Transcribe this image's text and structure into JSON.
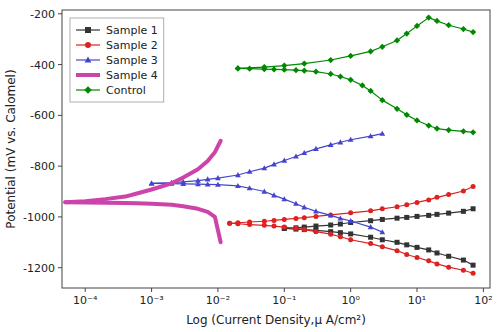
{
  "chart_data": {
    "type": "line",
    "xlabel": "Log (Current Density,μ A/cm²)",
    "ylabel": "Potential (mV vs. Calomel)",
    "log": "x",
    "grid": false,
    "legend": "upper left",
    "xlim": [
      4.466835921509635e-05,
      125.89254117941672
    ],
    "xticks": [
      {
        "value": 0.0001,
        "label": "10⁻⁴"
      },
      {
        "value": 0.001,
        "label": "10⁻³"
      },
      {
        "value": 0.01,
        "label": "10⁻²"
      },
      {
        "value": 0.1,
        "label": "10⁻¹"
      },
      {
        "value": 1,
        "label": "10⁰"
      },
      {
        "value": 10,
        "label": "10¹"
      },
      {
        "value": 100,
        "label": "10²"
      }
    ],
    "ylim": [
      -1280,
      -185
    ],
    "yticks": [
      -1200,
      -1000,
      -800,
      -600,
      -400,
      -200
    ],
    "series": [
      {
        "color": "#333333",
        "marker": "square",
        "x": [
          0.1,
          0.15,
          0.2,
          0.3,
          0.5,
          0.7,
          1.0,
          2.0,
          3.0,
          5.0,
          7.0,
          10,
          15,
          20,
          30,
          50,
          70
        ],
        "values": [
          -1045,
          -1048,
          -1050,
          -1053,
          -1058,
          -1062,
          -1067,
          -1080,
          -1090,
          -1100,
          -1110,
          -1120,
          -1130,
          -1142,
          -1155,
          -1170,
          -1190
        ]
      },
      {
        "name": "Sample 1",
        "color": "#333333",
        "marker": "square",
        "x": [
          0.1,
          0.15,
          0.2,
          0.3,
          0.5,
          0.7,
          1.0,
          2.0,
          3.0,
          5.0,
          7.0,
          10,
          15,
          20,
          30,
          50,
          70
        ],
        "values": [
          -1045,
          -1043,
          -1040,
          -1036,
          -1032,
          -1028,
          -1022,
          -1015,
          -1010,
          -1005,
          -1002,
          -998,
          -994,
          -990,
          -985,
          -978,
          -968
        ]
      },
      {
        "color": "#dd2222",
        "marker": "circle",
        "x": [
          0.015,
          0.02,
          0.03,
          0.05,
          0.07,
          0.1,
          0.15,
          0.2,
          0.3,
          0.5,
          0.7,
          1.0,
          2.0,
          3.0,
          5.0,
          7.0,
          10,
          15,
          20,
          30,
          50,
          70
        ],
        "values": [
          -1025,
          -1027,
          -1030,
          -1033,
          -1036,
          -1040,
          -1045,
          -1050,
          -1058,
          -1068,
          -1078,
          -1090,
          -1105,
          -1118,
          -1133,
          -1148,
          -1160,
          -1173,
          -1185,
          -1198,
          -1210,
          -1222
        ]
      },
      {
        "name": "Sample 2",
        "color": "#dd2222",
        "marker": "circle",
        "x": [
          0.015,
          0.02,
          0.03,
          0.05,
          0.07,
          0.1,
          0.15,
          0.2,
          0.3,
          0.5,
          1.0,
          2.0,
          3.0,
          5.0,
          7.0,
          10,
          15,
          20,
          30,
          50,
          70
        ],
        "values": [
          -1025,
          -1023,
          -1020,
          -1017,
          -1014,
          -1010,
          -1006,
          -1003,
          -998,
          -992,
          -984,
          -976,
          -968,
          -960,
          -952,
          -943,
          -933,
          -923,
          -912,
          -898,
          -880
        ]
      },
      {
        "color": "#4444cc",
        "marker": "triangle",
        "x": [
          0.001,
          0.002,
          0.003,
          0.005,
          0.007,
          0.01,
          0.02,
          0.03,
          0.05,
          0.07,
          0.1,
          0.15,
          0.2,
          0.3,
          0.5,
          0.7,
          1.0,
          2.0,
          3.0
        ],
        "values": [
          -868,
          -869,
          -870,
          -871,
          -872,
          -873,
          -878,
          -887,
          -900,
          -915,
          -930,
          -948,
          -962,
          -978,
          -994,
          -1006,
          -1016,
          -1040,
          -1060
        ]
      },
      {
        "name": "Sample 3",
        "color": "#4444cc",
        "marker": "triangle",
        "x": [
          0.001,
          0.002,
          0.003,
          0.005,
          0.007,
          0.01,
          0.02,
          0.03,
          0.05,
          0.07,
          0.1,
          0.15,
          0.2,
          0.3,
          0.5,
          0.7,
          1.0,
          2.0,
          3.0
        ],
        "values": [
          -868,
          -865,
          -862,
          -857,
          -852,
          -847,
          -835,
          -822,
          -808,
          -793,
          -778,
          -762,
          -748,
          -732,
          -716,
          -706,
          -696,
          -682,
          -672
        ]
      },
      {
        "color": "#cc44aa",
        "marker": "none",
        "x": [
          5e-05,
          0.0001,
          0.0002,
          0.0004,
          0.0006,
          0.001,
          0.002,
          0.003,
          0.005,
          0.007,
          0.009,
          0.011
        ],
        "values": [
          -942,
          -943,
          -944,
          -945,
          -946,
          -948,
          -952,
          -958,
          -968,
          -980,
          -1000,
          -1100
        ]
      },
      {
        "name": "Sample 4",
        "color": "#cc44aa",
        "marker": "none",
        "x": [
          5e-05,
          0.0001,
          0.0002,
          0.0004,
          0.0006,
          0.001,
          0.002,
          0.003,
          0.005,
          0.007,
          0.009,
          0.011
        ],
        "values": [
          -942,
          -938,
          -930,
          -920,
          -908,
          -892,
          -868,
          -845,
          -812,
          -780,
          -745,
          -700
        ]
      },
      {
        "color": "#008800",
        "marker": "diamond",
        "x": [
          0.02,
          0.03,
          0.05,
          0.07,
          0.1,
          0.15,
          0.2,
          0.3,
          0.5,
          0.7,
          1.0,
          1.5,
          2.0,
          3.0,
          5.0,
          7.0,
          10,
          15,
          20,
          30,
          50,
          70
        ],
        "values": [
          -415,
          -416,
          -418,
          -419,
          -420,
          -422,
          -424,
          -428,
          -437,
          -447,
          -460,
          -482,
          -504,
          -540,
          -574,
          -598,
          -620,
          -640,
          -652,
          -658,
          -663,
          -667
        ]
      },
      {
        "name": "Control",
        "color": "#008800",
        "marker": "diamond",
        "x": [
          0.02,
          0.05,
          0.1,
          0.2,
          0.5,
          1.0,
          2.0,
          3.0,
          5.0,
          7.0,
          10,
          15,
          20,
          30,
          50,
          70
        ],
        "values": [
          -415,
          -410,
          -404,
          -396,
          -382,
          -366,
          -348,
          -330,
          -305,
          -278,
          -248,
          -215,
          -228,
          -245,
          -260,
          -272
        ]
      }
    ]
  }
}
